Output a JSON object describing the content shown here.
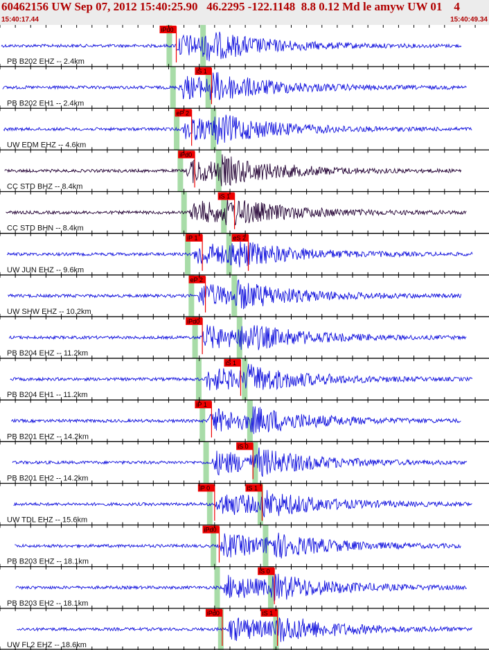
{
  "header": {
    "title": "60462156 UW Sep 07, 2012 15:40:25.90   46.2295 -122.1148  8.8 0.12 Md le amyw UW 01    4",
    "start_time": "15:40:17.44",
    "end_time": "15:40:49.34"
  },
  "colors": {
    "trace": "#1010dd",
    "trace_dark": "#220033",
    "pick": "#ee0000",
    "phase_band": "#a8dca8",
    "separator": "#000000"
  },
  "traces": [
    {
      "label": "PB B202 EHZ -- 2.4km",
      "picks": [
        {
          "text": "iPd0",
          "t": 11.5
        }
      ]
    },
    {
      "label": "PB B202 EH1 -- 2.4km",
      "picks": [
        {
          "text": "iS 1",
          "t": 13.8
        }
      ]
    },
    {
      "label": "UW EDM EHZ -- 4.6km",
      "picks": [
        {
          "text": "eP 2",
          "t": 12.5
        }
      ]
    },
    {
      "label": "CC STD BHZ -- 8.4km",
      "picks": [
        {
          "text": "iPd0",
          "t": 12.7
        }
      ]
    },
    {
      "label": "CC STD BHN -- 8.4km",
      "picks": [
        {
          "text": "iS 1",
          "t": 15.3
        }
      ]
    },
    {
      "label": "UW JUN EHZ -- 9.6km",
      "picks": [
        {
          "text": "iP 1",
          "t": 13.2
        },
        {
          "text": "eS 2",
          "t": 16.2
        }
      ]
    },
    {
      "label": "UW SHW EHZ -- 10.2km",
      "picks": [
        {
          "text": "eP 2",
          "t": 13.4
        }
      ]
    },
    {
      "label": "PB B204 EHZ -- 11.2km",
      "picks": [
        {
          "text": "iPd0",
          "t": 13.2
        }
      ]
    },
    {
      "label": "PB B204 EH1 -- 11.2km",
      "picks": [
        {
          "text": "iS 1",
          "t": 15.7
        }
      ]
    },
    {
      "label": "PB B201 EHZ -- 14.2km",
      "picks": [
        {
          "text": "iP 1",
          "t": 13.8
        }
      ]
    },
    {
      "label": "PB B201 EH2 -- 14.2km",
      "picks": [
        {
          "text": "iS 0",
          "t": 16.5
        }
      ]
    },
    {
      "label": "UW TDL EHZ -- 15.6km",
      "picks": [
        {
          "text": "iP 0",
          "t": 14.0
        },
        {
          "text": "iS 1",
          "t": 17.1
        }
      ]
    },
    {
      "label": "PB B203 EHZ -- 18.1km",
      "picks": [
        {
          "text": "iPd0",
          "t": 14.3
        }
      ]
    },
    {
      "label": "PB B203 EH2 -- 18.1km",
      "picks": [
        {
          "text": "iS 0",
          "t": 17.9
        }
      ]
    },
    {
      "label": "UW FL2 EHZ -- 18.6km",
      "picks": [
        {
          "text": "iPd0",
          "t": 14.5
        },
        {
          "text": "iS 1",
          "t": 18.1
        }
      ]
    }
  ]
}
